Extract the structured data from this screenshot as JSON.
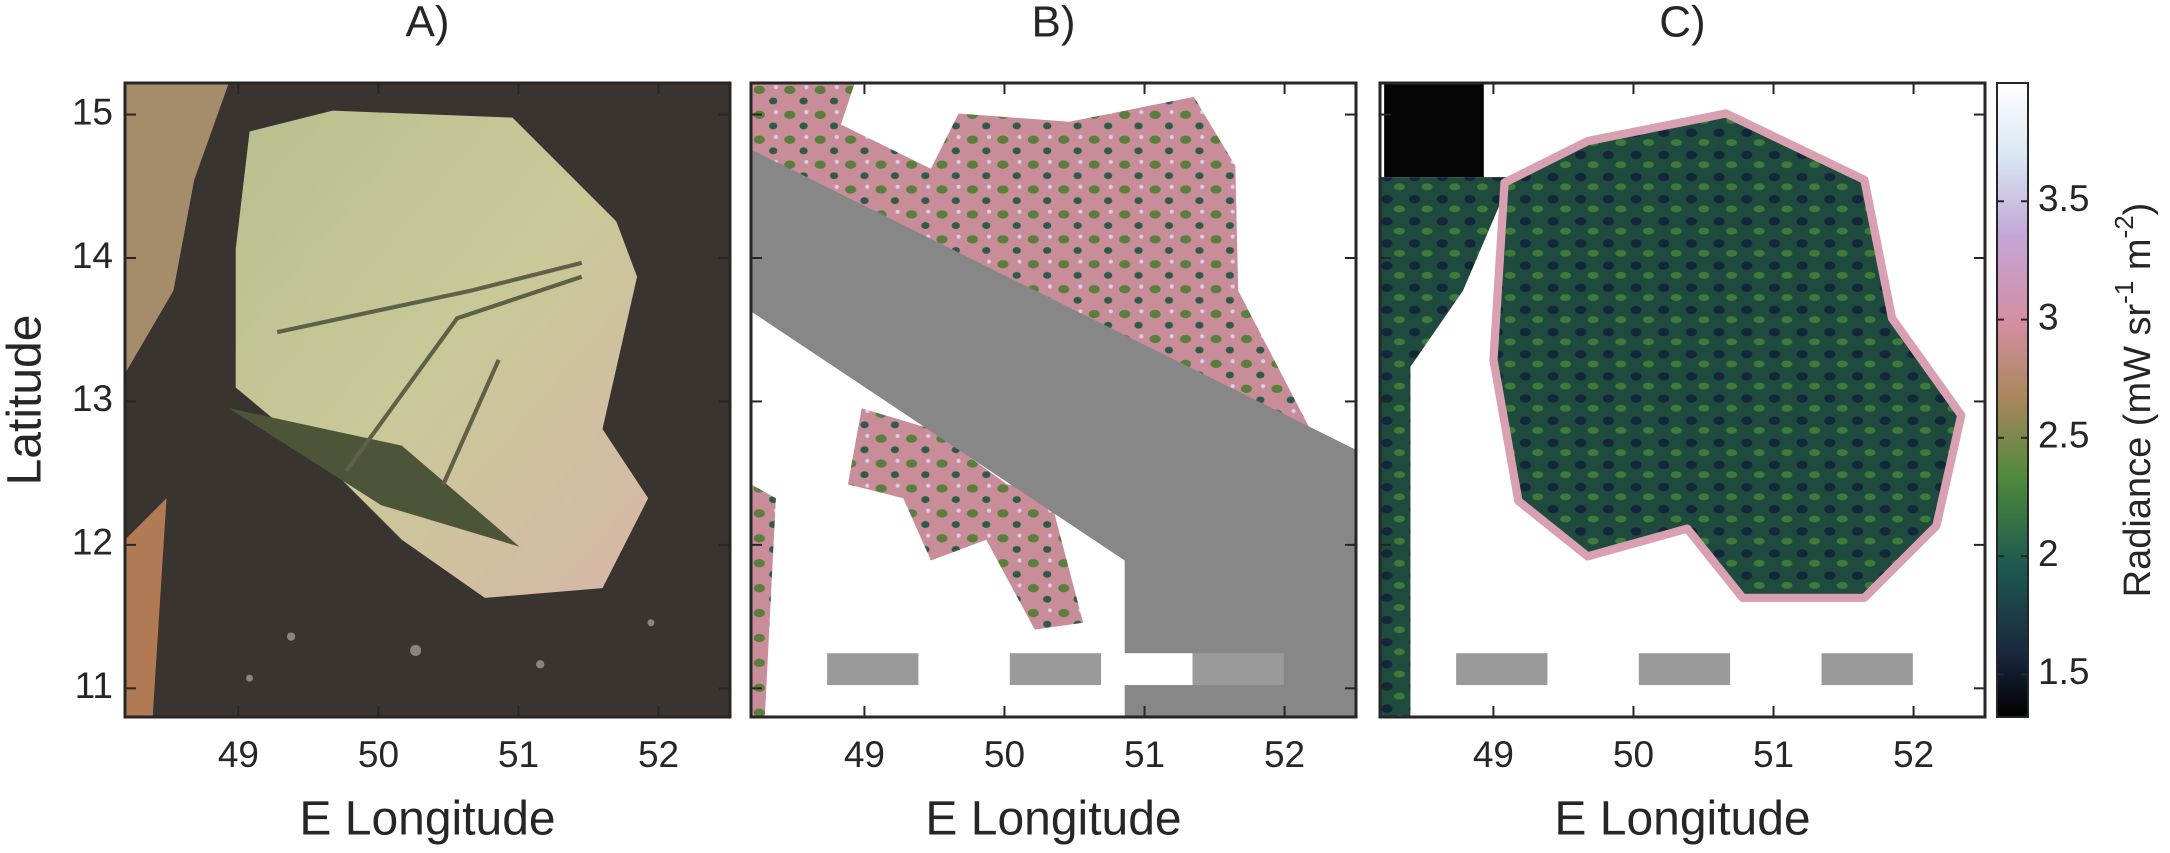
{
  "chart_data": [
    {
      "type": "image",
      "title": "A)",
      "xlabel": "E Longitude",
      "ylabel": "Latitude",
      "xlim": [
        48.19,
        52.51
      ],
      "ylim": [
        10.8,
        15.22
      ],
      "xticks": [
        49,
        50,
        51,
        52
      ],
      "yticks": [
        11,
        12,
        13,
        14,
        15
      ]
    },
    {
      "type": "image",
      "title": "B)",
      "xlabel": "E Longitude",
      "xlim": [
        48.19,
        52.51
      ],
      "ylim": [
        10.8,
        15.22
      ],
      "xticks": [
        49,
        50,
        51,
        52
      ],
      "yticks": [
        11,
        12,
        13,
        14,
        15
      ]
    },
    {
      "type": "image",
      "title": "C)",
      "xlabel": "E Longitude",
      "xlim": [
        48.19,
        52.51
      ],
      "ylim": [
        10.8,
        15.22
      ],
      "xticks": [
        49,
        50,
        51,
        52
      ],
      "yticks": [
        11,
        12,
        13,
        14,
        15
      ],
      "colorbar": {
        "lim": [
          1.32,
          4.0
        ],
        "ticks": [
          1.5,
          2,
          2.5,
          3,
          3.5
        ],
        "label_parts": [
          "Radiance (mW sr",
          "-1",
          " m",
          "-2",
          ")"
        ]
      }
    }
  ]
}
